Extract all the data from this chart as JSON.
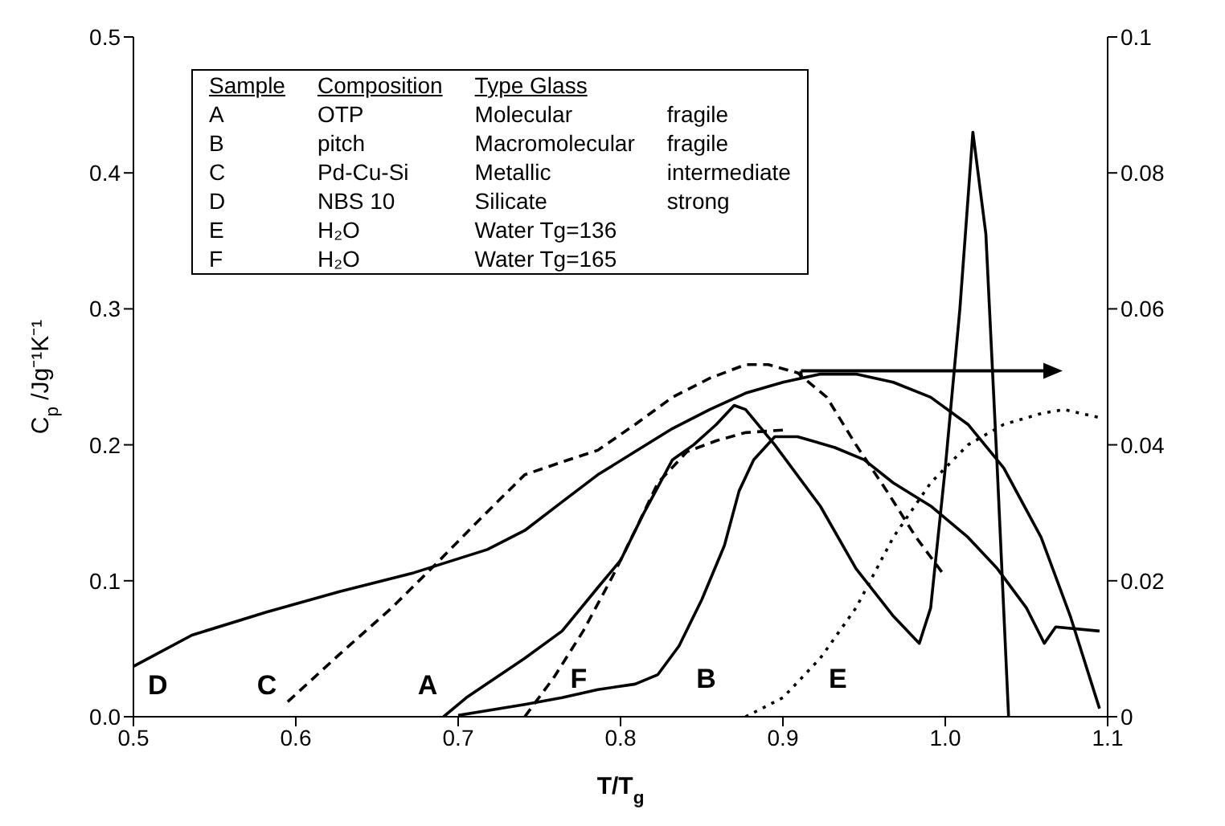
{
  "chart_data": {
    "type": "line",
    "xlabel": "T/T$_{g}$",
    "ylabel": "C$_{p}$ /Jg⁻¹K⁻¹",
    "xlim": [
      0.5,
      1.1
    ],
    "xticks": [
      0.5,
      0.6,
      0.7,
      0.8,
      0.9,
      {
        "value": 1.0,
        "label": "1.0"
      },
      1.1
    ],
    "ylim": [
      0,
      0.5
    ],
    "yticks": [
      {
        "value": 0,
        "label": "0.0"
      },
      0.1,
      0.2,
      0.3,
      0.4,
      0.5
    ],
    "y2lim": [
      0,
      0.1
    ],
    "y2ticks": [
      0,
      0.02,
      0.04,
      0.06,
      0.08,
      0.1
    ],
    "grid": false,
    "legend": false,
    "marker": "none",
    "series": [
      {
        "color": "#000000",
        "line_style": "solid",
        "x": [
          0.691,
          0.705,
          0.741,
          0.764,
          0.786,
          0.8,
          0.814,
          0.823,
          0.832,
          0.845,
          0.859,
          0.87,
          0.877,
          0.895,
          0.923,
          0.945,
          0.968,
          0.984,
          0.991,
          1.0,
          1.009,
          1.017,
          1.025,
          1.032,
          1.039
        ],
        "values": [
          0,
          0.014,
          0.043,
          0.063,
          0.095,
          0.115,
          0.149,
          0.169,
          0.189,
          0.2,
          0.215,
          0.229,
          0.226,
          0.2,
          0.155,
          0.109,
          0.074,
          0.054,
          0.08,
          0.183,
          0.3,
          0.43,
          0.355,
          0.183,
          0
        ]
      },
      {
        "color": "#000000",
        "line_style": "solid",
        "x": [
          0.7,
          0.741,
          0.764,
          0.786,
          0.809,
          0.823,
          0.836,
          0.85,
          0.864,
          0.873,
          0.882,
          0.895,
          0.909,
          0.932,
          0.95,
          0.968,
          0.991,
          1.014,
          1.032,
          1.05,
          1.061,
          1.068,
          1.095
        ],
        "values": [
          0.001,
          0.009,
          0.014,
          0.02,
          0.024,
          0.031,
          0.052,
          0.086,
          0.126,
          0.166,
          0.189,
          0.206,
          0.206,
          0.198,
          0.189,
          0.172,
          0.155,
          0.132,
          0.109,
          0.08,
          0.054,
          0.066,
          0.063
        ]
      },
      {
        "color": "#000000",
        "line_style": "dashed",
        "x": [
          0.595,
          0.627,
          0.659,
          0.686,
          0.714,
          0.741,
          0.768,
          0.786,
          0.809,
          0.832,
          0.855,
          0.877,
          0.891,
          0.909,
          0.927,
          0.945,
          0.964,
          0.982,
          1.0
        ],
        "values": [
          0.011,
          0.046,
          0.08,
          0.112,
          0.146,
          0.178,
          0.189,
          0.196,
          0.215,
          0.235,
          0.249,
          0.259,
          0.259,
          0.253,
          0.235,
          0.2,
          0.166,
          0.132,
          0.103
        ]
      },
      {
        "color": "#000000",
        "line_style": "solid",
        "axis": "y2",
        "x": [
          0.5,
          0.536,
          0.582,
          0.627,
          0.673,
          0.718,
          0.741,
          0.764,
          0.786,
          0.809,
          0.832,
          0.855,
          0.877,
          0.9,
          0.923,
          0.945,
          0.968,
          0.991,
          1.014,
          1.036,
          1.059,
          1.077,
          1.095
        ],
        "values": [
          0.0074,
          0.012,
          0.0154,
          0.0184,
          0.0212,
          0.0246,
          0.0274,
          0.0316,
          0.0356,
          0.039,
          0.0424,
          0.0452,
          0.0476,
          0.0492,
          0.0504,
          0.0504,
          0.0492,
          0.047,
          0.043,
          0.0366,
          0.0264,
          0.0148,
          0.0012
        ]
      },
      {
        "color": "#000000",
        "line_style": "dotted",
        "x": [
          0.877,
          0.9,
          0.923,
          0.945,
          0.968,
          0.991,
          1.014,
          1.036,
          1.059,
          1.073,
          1.095
        ],
        "values": [
          0,
          0.014,
          0.043,
          0.08,
          0.132,
          0.172,
          0.2,
          0.215,
          0.223,
          0.226,
          0.22
        ]
      },
      {
        "color": "#000000",
        "line_style": "dashed",
        "x": [
          0.741,
          0.759,
          0.777,
          0.795,
          0.809,
          0.823,
          0.841,
          0.859,
          0.877,
          0.902
        ],
        "values": [
          0,
          0.029,
          0.063,
          0.103,
          0.137,
          0.172,
          0.195,
          0.203,
          0.209,
          0.211
        ]
      }
    ],
    "annotations": [
      "D",
      "C",
      "A",
      "F",
      "B",
      "E",
      "Sample\tComposition\tType Glass",
      "A\tOTP\tMolecular\tfragile",
      "B\tpitch\tMacromolecular\tfragile",
      "C\tPd-Cu-Si\tMetallic\tintermediate",
      "D\tNBS 10\tSilicate\tstrong",
      "E\tH₂O\tWater Tg=136",
      "F\tH₂O\tWater Tg=165"
    ]
  }
}
